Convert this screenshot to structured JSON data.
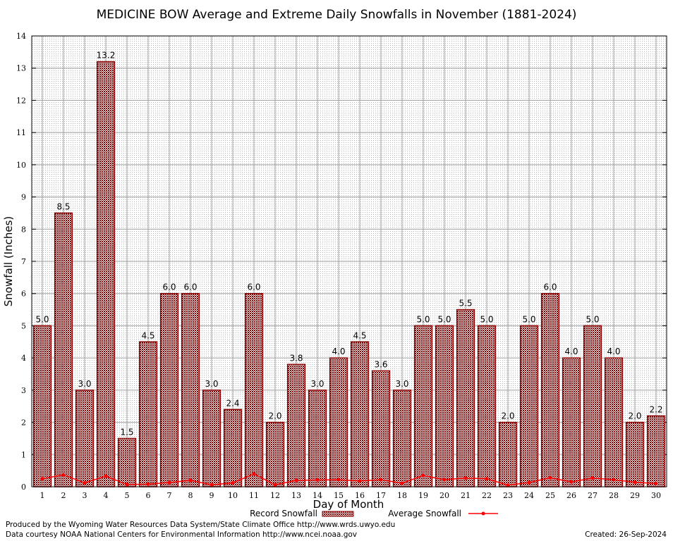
{
  "chart_data": {
    "type": "bar",
    "title": "MEDICINE BOW Average and Extreme Daily Snowfalls in November (1881-2024)",
    "xlabel": "Day of Month",
    "ylabel": "Snowfall (Inches)",
    "ylim": [
      0,
      14
    ],
    "yticks": [
      "0",
      "1",
      "2",
      "3",
      "4",
      "5",
      "6",
      "7",
      "8",
      "9",
      "10",
      "11",
      "12",
      "13",
      "14"
    ],
    "categories": [
      "1",
      "2",
      "3",
      "4",
      "5",
      "6",
      "7",
      "8",
      "9",
      "10",
      "11",
      "12",
      "13",
      "14",
      "15",
      "16",
      "17",
      "18",
      "19",
      "20",
      "21",
      "22",
      "23",
      "24",
      "25",
      "26",
      "27",
      "28",
      "29",
      "30"
    ],
    "grid": true,
    "legend_position": "bottom",
    "series": [
      {
        "name": "Record Snowfall",
        "type": "bar",
        "color": "#8b0000",
        "values": [
          5.0,
          8.5,
          3.0,
          13.2,
          1.5,
          4.5,
          6.0,
          6.0,
          3.0,
          2.4,
          6.0,
          2.0,
          3.8,
          3.0,
          4.0,
          4.5,
          3.6,
          3.0,
          5.0,
          5.0,
          5.5,
          5.0,
          2.0,
          5.0,
          6.0,
          4.0,
          5.0,
          4.0,
          2.0,
          2.2
        ],
        "labels": [
          "5.0",
          "8.5",
          "3.0",
          "13.2",
          "1.5",
          "4.5",
          "6.0",
          "6.0",
          "3.0",
          "2.4",
          "6.0",
          "2.0",
          "3.8",
          "3.0",
          "4.0",
          "4.5",
          "3.6",
          "3.0",
          "5.0",
          "5.0",
          "5.5",
          "5.0",
          "2.0",
          "5.0",
          "6.0",
          "4.0",
          "5.0",
          "4.0",
          "2.0",
          "2.2"
        ]
      },
      {
        "name": "Average Snowfall",
        "type": "line",
        "color": "#ff0000",
        "values": [
          0.25,
          0.37,
          0.12,
          0.33,
          0.07,
          0.08,
          0.13,
          0.2,
          0.06,
          0.12,
          0.4,
          0.06,
          0.2,
          0.21,
          0.22,
          0.18,
          0.22,
          0.11,
          0.35,
          0.22,
          0.27,
          0.25,
          0.05,
          0.13,
          0.28,
          0.15,
          0.27,
          0.22,
          0.14,
          0.1
        ]
      }
    ]
  },
  "credits": {
    "producer": "Produced by the Wyoming Water Resources Data System/State Climate Office http://www.wrds.uwyo.edu",
    "source": "Data courtesy NOAA National Centers for Environmental Information http://www.ncei.noaa.gov",
    "created": "Created:  26-Sep-2024"
  }
}
